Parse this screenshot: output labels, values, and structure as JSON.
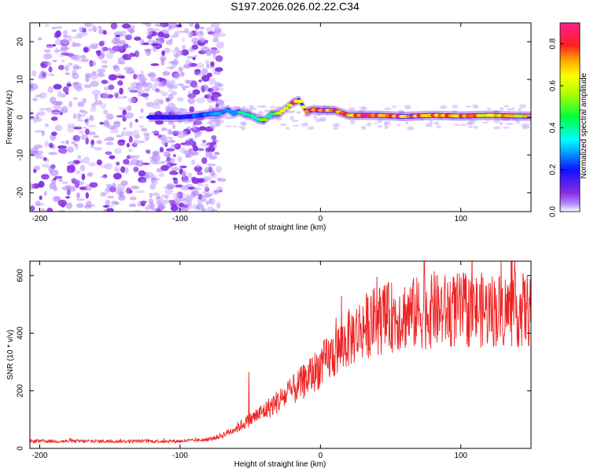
{
  "figure_title": "S197.2026.026.02.22.C34",
  "chart_data": [
    {
      "type": "heatmap",
      "name": "spectrogram",
      "xlabel": "Height of straight line (km)",
      "ylabel": "Frequency (Hz)",
      "xlim": [
        -207,
        150
      ],
      "ylim": [
        -25,
        25
      ],
      "xticks": [
        -200,
        -100,
        0,
        100
      ],
      "yticks": [
        -20,
        -10,
        0,
        10,
        20
      ],
      "colorbar": {
        "label": "Normalized spectral amplitude",
        "range": [
          0,
          0.9
        ],
        "ticks": [
          0.0,
          0.2,
          0.4,
          0.6,
          0.8
        ],
        "colormap": "rainbow"
      },
      "signal_ridge": {
        "description": "dominant frequency vs height",
        "x": [
          -122,
          -110,
          -100,
          -90,
          -80,
          -72,
          -66,
          -62,
          -58,
          -54,
          -50,
          -45,
          -40,
          -35,
          -30,
          -25,
          -20,
          -15,
          -10,
          -5,
          0,
          10,
          20,
          40,
          60,
          80,
          100,
          120,
          140,
          150
        ],
        "freq": [
          0,
          0,
          0,
          0.3,
          0.8,
          1.0,
          2.0,
          1.0,
          1.5,
          0.8,
          0.5,
          -0.5,
          -0.8,
          0.8,
          1.0,
          2.2,
          3.8,
          4.5,
          1.5,
          2.0,
          1.8,
          1.8,
          0.5,
          0.5,
          0.2,
          0.5,
          0.3,
          0.5,
          0.3,
          0.3
        ],
        "amplitude": [
          0.2,
          0.2,
          0.2,
          0.25,
          0.3,
          0.3,
          0.35,
          0.3,
          0.4,
          0.45,
          0.4,
          0.5,
          0.55,
          0.5,
          0.6,
          0.7,
          0.85,
          0.75,
          0.8,
          0.85,
          0.9,
          0.9,
          0.8,
          0.9,
          0.85,
          0.8,
          0.75,
          0.75,
          0.7,
          0.7
        ]
      },
      "noise_region_x": [
        -207,
        -80
      ]
    },
    {
      "type": "line",
      "name": "snr",
      "xlabel": "Height of straight line (km)",
      "ylabel": "SNR (10 * v/v)",
      "xlim": [
        -207,
        150
      ],
      "ylim": [
        0,
        650
      ],
      "xticks": [
        -200,
        -100,
        0,
        100
      ],
      "yticks": [
        0,
        200,
        400,
        600
      ],
      "color": "#ee2222",
      "trend": {
        "x": [
          -207,
          -150,
          -100,
          -80,
          -70,
          -60,
          -50,
          -40,
          -30,
          -20,
          -10,
          0,
          10,
          20,
          30,
          40,
          60,
          80,
          100,
          120,
          150
        ],
        "y": [
          25,
          25,
          25,
          30,
          45,
          70,
          100,
          130,
          165,
          200,
          240,
          285,
          330,
          380,
          420,
          445,
          465,
          475,
          480,
          480,
          480
        ]
      },
      "notable_peaks": [
        {
          "x": -51,
          "y": 265
        },
        {
          "x": 15,
          "y": 530
        },
        {
          "x": 74,
          "y": 650
        },
        {
          "x": 81,
          "y": 615
        }
      ]
    }
  ]
}
